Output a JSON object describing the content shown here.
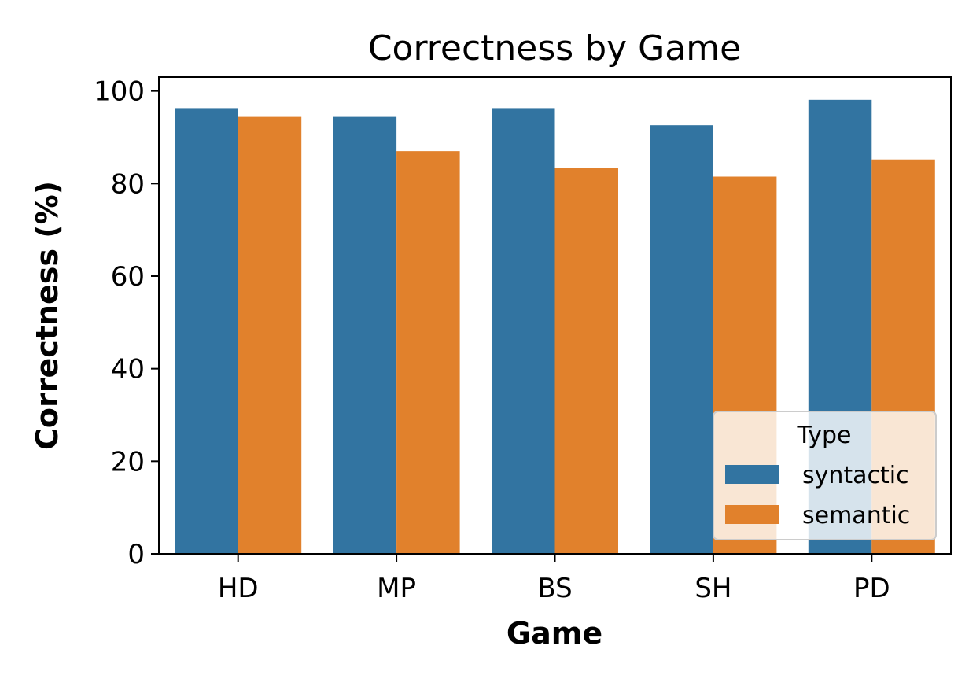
{
  "chart_data": {
    "type": "bar",
    "title": "Correctness by Game",
    "xlabel": "Game",
    "ylabel": "Correctness (%)",
    "categories": [
      "HD",
      "MP",
      "BS",
      "SH",
      "PD"
    ],
    "ylim": [
      0,
      103
    ],
    "yticks": [
      0,
      20,
      40,
      60,
      80,
      100
    ],
    "grid": false,
    "legend": {
      "title": "Type",
      "placement": "lower-right"
    },
    "series": [
      {
        "name": "syntactic",
        "color": "#3274a1",
        "values": [
          96.3,
          94.4,
          96.3,
          92.6,
          98.1
        ]
      },
      {
        "name": "semantic",
        "color": "#e1812c",
        "values": [
          94.4,
          87.0,
          83.3,
          81.5,
          85.2
        ]
      }
    ]
  }
}
